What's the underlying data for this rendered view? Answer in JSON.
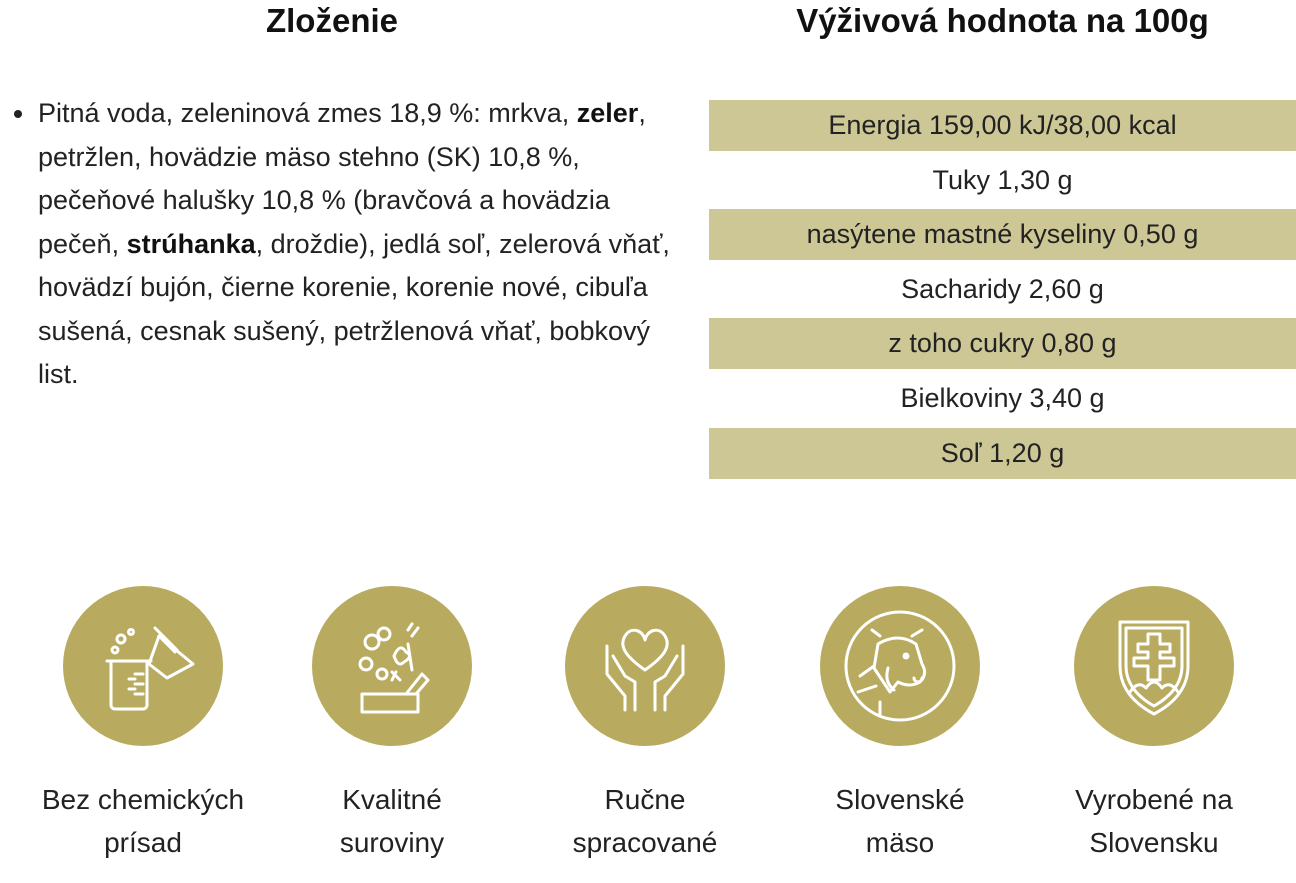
{
  "headings": {
    "ingredients": "Zloženie",
    "nutrition": "Výživová hodnota na 100g"
  },
  "ingredients": {
    "part1": "Pitná voda, zeleninová zmes 18,9 %: mrkva, ",
    "bold1": "zeler",
    "part2": ", petržlen, hovädzie mäso stehno (SK) 10,8 %, pečeňové halušky 10,8 % (bravčová a hovädzia pečeň, ",
    "bold2": "strúhanka",
    "part3": ", droždie), jedlá soľ, zelerová vňať, hovädzí bujón, čierne korenie, korenie nové, cibuľa sušená, cesnak sušený, petržlenová vňať, bobkový list."
  },
  "nutrition": [
    {
      "label": "Energia 159,00 kJ/38,00 kcal"
    },
    {
      "label": "Tuky 1,30 g"
    },
    {
      "label": "nasýtene mastné kyseliny 0,50 g"
    },
    {
      "label": "Sacharidy 2,60 g"
    },
    {
      "label": "z toho cukry 0,80 g"
    },
    {
      "label": "Bielkoviny 3,40 g"
    },
    {
      "label": "Soľ 1,20 g"
    }
  ],
  "colors": {
    "band": "#cdc796",
    "badge": "#b8ab5f"
  },
  "features": [
    {
      "icon": "lab-flask-icon",
      "line1": "Bez chemických",
      "line2": "prísad"
    },
    {
      "icon": "vegetables-icon",
      "line1": "Kvalitné",
      "line2": "suroviny"
    },
    {
      "icon": "heart-hands-icon",
      "line1": "Ručne",
      "line2": "spracované"
    },
    {
      "icon": "cow-icon",
      "line1": "Slovenské",
      "line2": "mäso"
    },
    {
      "icon": "slovak-emblem-icon",
      "line1": "Vyrobené na",
      "line2": "Slovensku"
    }
  ]
}
